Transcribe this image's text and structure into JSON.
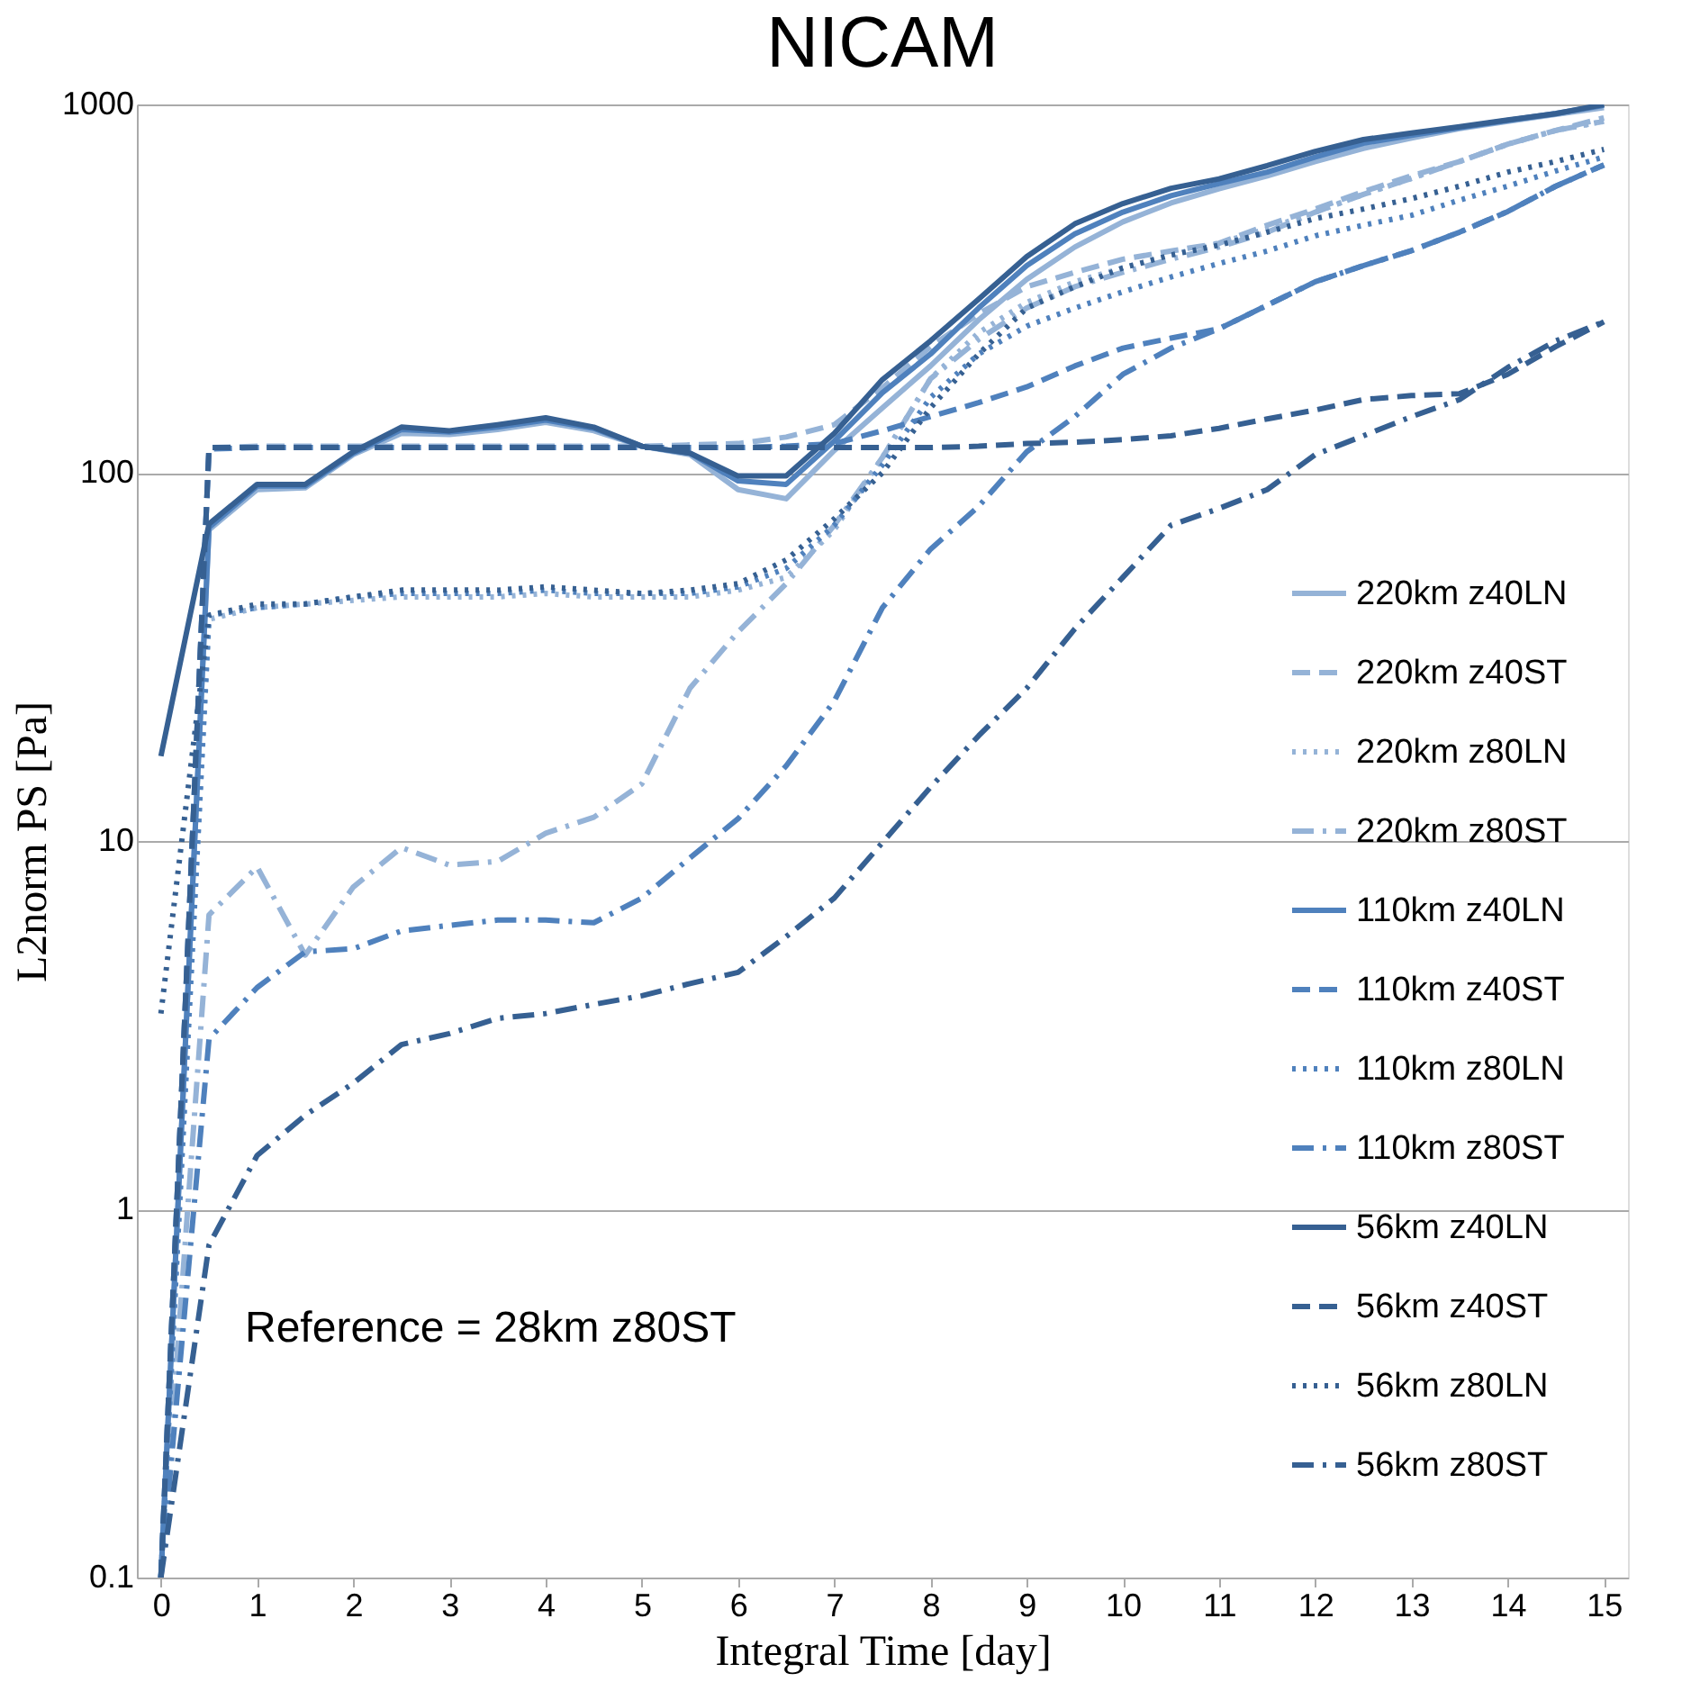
{
  "chart_data": {
    "type": "line",
    "title": "NICAM",
    "xlabel": "Integral Time [day]",
    "ylabel": "L2norm PS [Pa]",
    "annotations": [
      "Reference = 28km z80ST"
    ],
    "x": [
      0,
      0.5,
      1,
      1.5,
      2,
      2.5,
      3,
      3.5,
      4,
      4.5,
      5,
      5.5,
      6,
      6.5,
      7,
      7.5,
      8,
      8.5,
      9,
      9.5,
      10,
      10.5,
      11,
      11.5,
      12,
      12.5,
      13,
      13.5,
      14,
      14.5,
      15
    ],
    "xlim": [
      -0.25,
      15.25
    ],
    "xticks": [
      0,
      1,
      2,
      3,
      4,
      5,
      6,
      7,
      8,
      9,
      10,
      11,
      12,
      13,
      14,
      15
    ],
    "ylim": [
      0.1,
      1000
    ],
    "yticks": [
      0.1,
      1,
      10,
      100,
      1000
    ],
    "log": true,
    "grid": "y",
    "legend": "right",
    "marker": "none",
    "series": [
      {
        "name": "220km z40LN",
        "color": "#95b3d7",
        "line_style": "solid",
        "values": [
          0.1,
          70,
          90,
          91,
          112,
          128,
          127,
          131,
          137,
          130,
          118,
          112,
          90,
          85,
          115,
          150,
          195,
          260,
          335,
          410,
          480,
          540,
          590,
          640,
          700,
          760,
          810,
          860,
          900,
          940,
          980
        ]
      },
      {
        "name": "220km z40ST",
        "color": "#95b3d7",
        "line_style": "dashed",
        "values": [
          0.1,
          117,
          118,
          118,
          118,
          118,
          118,
          118,
          118,
          118,
          118,
          119,
          120,
          125,
          135,
          170,
          220,
          270,
          320,
          350,
          380,
          400,
          420,
          470,
          520,
          580,
          640,
          700,
          780,
          850,
          920
        ]
      },
      {
        "name": "220km z80LN",
        "color": "#95b3d7",
        "line_style": "dotted",
        "values": [
          0.1,
          40,
          43,
          44,
          45,
          46,
          46,
          46,
          47,
          46,
          46,
          46,
          48,
          52,
          70,
          110,
          180,
          240,
          290,
          330,
          360,
          390,
          420,
          460,
          510,
          570,
          630,
          700,
          780,
          850,
          900
        ]
      },
      {
        "name": "220km z80ST",
        "color": "#95b3d7",
        "line_style": "dashdot",
        "values": [
          0.1,
          6.3,
          8.5,
          4.9,
          7.5,
          9.6,
          8.6,
          8.8,
          10.5,
          11.6,
          14.3,
          26,
          37,
          50,
          72,
          110,
          180,
          230,
          280,
          320,
          350,
          380,
          410,
          450,
          510,
          570,
          630,
          700,
          780,
          850,
          900
        ]
      },
      {
        "name": "110km z40LN",
        "color": "#4f81bd",
        "line_style": "solid",
        "values": [
          0.1,
          71,
          92,
          92,
          113,
          131,
          129,
          133,
          139,
          132,
          118,
          113,
          95,
          93,
          122,
          165,
          210,
          280,
          365,
          445,
          510,
          565,
          610,
          655,
          720,
          785,
          825,
          865,
          905,
          945,
          995
        ]
      },
      {
        "name": "110km z40ST",
        "color": "#4f81bd",
        "line_style": "dashed",
        "values": [
          0.1,
          116,
          117,
          117,
          117,
          117,
          117,
          117,
          117,
          117,
          117,
          117,
          117,
          118,
          120,
          130,
          142,
          155,
          171,
          195,
          218,
          232,
          246,
          285,
          330,
          365,
          401,
          450,
          512,
          600,
          685
        ]
      },
      {
        "name": "110km z80LN",
        "color": "#4f81bd",
        "line_style": "dotted",
        "values": [
          0.1,
          41,
          43,
          44,
          46,
          47,
          47,
          47,
          48,
          47,
          47,
          47,
          49,
          55,
          72,
          105,
          160,
          210,
          250,
          280,
          310,
          340,
          370,
          400,
          440,
          470,
          500,
          550,
          600,
          660,
          720
        ]
      },
      {
        "name": "110km z80ST",
        "color": "#4f81bd",
        "line_style": "dashdot",
        "values": [
          0.1,
          2.9,
          4.0,
          5.0,
          5.1,
          5.7,
          5.9,
          6.1,
          6.1,
          6.0,
          7.0,
          9.0,
          11.5,
          16,
          24,
          43,
          62,
          81,
          114,
          142,
          185,
          218,
          246,
          285,
          330,
          365,
          401,
          450,
          512,
          600,
          685
        ]
      },
      {
        "name": "56km z40LN",
        "color": "#366092",
        "line_style": "solid",
        "values": [
          17,
          72.6,
          93,
          93,
          114,
          133,
          130,
          135,
          141,
          133,
          118,
          113,
          98,
          98,
          128,
          179,
          228,
          296,
          386,
          474,
          538,
          592,
          628,
          682,
          746,
          803,
          836,
          870,
          907,
          944,
          1000
        ]
      },
      {
        "name": "56km z40ST",
        "color": "#366092",
        "line_style": "dashed",
        "values": [
          0.1,
          117,
          117,
          117,
          117,
          117,
          117,
          117,
          117,
          117,
          117,
          117,
          117,
          117,
          117,
          117,
          117,
          118,
          120,
          121,
          123,
          126,
          132,
          140,
          148,
          158,
          162,
          164,
          185,
          220,
          257
        ]
      },
      {
        "name": "56km z80LN",
        "color": "#366092",
        "line_style": "dotted",
        "values": [
          3.4,
          41,
          44,
          44,
          46,
          48,
          48,
          48,
          49,
          48,
          47,
          48,
          50,
          58,
          75,
          100,
          150,
          210,
          280,
          320,
          360,
          390,
          415,
          450,
          490,
          520,
          555,
          600,
          655,
          700,
          755
        ]
      },
      {
        "name": "56km z80ST",
        "color": "#366092",
        "line_style": "dashdot",
        "values": [
          0.1,
          0.8,
          1.4,
          1.8,
          2.2,
          2.8,
          3.0,
          3.3,
          3.4,
          3.6,
          3.8,
          4.1,
          4.4,
          5.5,
          7,
          9.9,
          14,
          19.3,
          26,
          37.7,
          52,
          72,
          80,
          90,
          112,
          126,
          142,
          158,
          193,
          228,
          257
        ]
      }
    ]
  }
}
